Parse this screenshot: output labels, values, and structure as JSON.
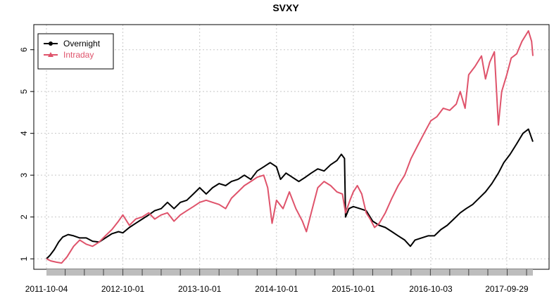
{
  "chart_data": {
    "type": "line",
    "title": "SVXY",
    "xlabel": "",
    "ylabel": "",
    "x_tick_labels": [
      "2011-10-04",
      "2012-10-01",
      "2013-10-01",
      "2014-10-01",
      "2015-10-01",
      "2016-10-03",
      "2017-09-29"
    ],
    "x_range": [
      "2011-10-04",
      "2018-01-31"
    ],
    "ylim": [
      0.75,
      6.6
    ],
    "y_ticks": [
      1,
      2,
      3,
      4,
      5,
      6
    ],
    "grid": true,
    "legend_position": "top-left",
    "series": [
      {
        "name": "Overnight",
        "color": "#000000",
        "marker": "circle",
        "points": [
          [
            "2011-10-04",
            1.0
          ],
          [
            "2011-10-20",
            1.08
          ],
          [
            "2011-11-10",
            1.22
          ],
          [
            "2011-12-01",
            1.4
          ],
          [
            "2011-12-20",
            1.52
          ],
          [
            "2012-01-15",
            1.58
          ],
          [
            "2012-02-10",
            1.55
          ],
          [
            "2012-03-10",
            1.5
          ],
          [
            "2012-04-10",
            1.5
          ],
          [
            "2012-05-10",
            1.42
          ],
          [
            "2012-06-10",
            1.4
          ],
          [
            "2012-07-10",
            1.5
          ],
          [
            "2012-08-10",
            1.6
          ],
          [
            "2012-09-10",
            1.65
          ],
          [
            "2012-10-01",
            1.62
          ],
          [
            "2012-11-01",
            1.75
          ],
          [
            "2012-12-01",
            1.85
          ],
          [
            "2013-01-01",
            1.95
          ],
          [
            "2013-02-01",
            2.05
          ],
          [
            "2013-03-01",
            2.15
          ],
          [
            "2013-04-01",
            2.2
          ],
          [
            "2013-05-01",
            2.35
          ],
          [
            "2013-06-01",
            2.2
          ],
          [
            "2013-07-01",
            2.35
          ],
          [
            "2013-08-01",
            2.4
          ],
          [
            "2013-09-01",
            2.55
          ],
          [
            "2013-10-01",
            2.7
          ],
          [
            "2013-11-01",
            2.55
          ],
          [
            "2013-12-01",
            2.7
          ],
          [
            "2014-01-01",
            2.8
          ],
          [
            "2014-02-01",
            2.75
          ],
          [
            "2014-03-01",
            2.85
          ],
          [
            "2014-04-01",
            2.9
          ],
          [
            "2014-05-01",
            3.0
          ],
          [
            "2014-06-01",
            2.9
          ],
          [
            "2014-07-01",
            3.1
          ],
          [
            "2014-08-01",
            3.2
          ],
          [
            "2014-09-01",
            3.3
          ],
          [
            "2014-10-01",
            3.2
          ],
          [
            "2014-10-20",
            2.9
          ],
          [
            "2014-11-15",
            3.05
          ],
          [
            "2014-12-15",
            2.95
          ],
          [
            "2015-01-15",
            2.85
          ],
          [
            "2015-02-15",
            2.95
          ],
          [
            "2015-03-15",
            3.05
          ],
          [
            "2015-04-15",
            3.15
          ],
          [
            "2015-05-15",
            3.1
          ],
          [
            "2015-06-15",
            3.25
          ],
          [
            "2015-07-15",
            3.35
          ],
          [
            "2015-08-05",
            3.5
          ],
          [
            "2015-08-20",
            3.4
          ],
          [
            "2015-08-25",
            2.0
          ],
          [
            "2015-09-10",
            2.2
          ],
          [
            "2015-10-01",
            2.25
          ],
          [
            "2015-11-01",
            2.2
          ],
          [
            "2015-12-01",
            2.15
          ],
          [
            "2016-01-01",
            1.9
          ],
          [
            "2016-02-01",
            1.8
          ],
          [
            "2016-03-01",
            1.75
          ],
          [
            "2016-04-01",
            1.65
          ],
          [
            "2016-05-01",
            1.55
          ],
          [
            "2016-06-01",
            1.45
          ],
          [
            "2016-06-28",
            1.3
          ],
          [
            "2016-07-20",
            1.45
          ],
          [
            "2016-08-20",
            1.5
          ],
          [
            "2016-09-20",
            1.55
          ],
          [
            "2016-10-20",
            1.55
          ],
          [
            "2016-11-20",
            1.7
          ],
          [
            "2016-12-20",
            1.8
          ],
          [
            "2017-01-20",
            1.95
          ],
          [
            "2017-02-20",
            2.1
          ],
          [
            "2017-03-20",
            2.2
          ],
          [
            "2017-04-20",
            2.3
          ],
          [
            "2017-05-20",
            2.45
          ],
          [
            "2017-06-20",
            2.6
          ],
          [
            "2017-07-20",
            2.8
          ],
          [
            "2017-08-20",
            3.05
          ],
          [
            "2017-09-15",
            3.3
          ],
          [
            "2017-10-15",
            3.5
          ],
          [
            "2017-11-15",
            3.75
          ],
          [
            "2017-12-15",
            4.0
          ],
          [
            "2018-01-10",
            4.1
          ],
          [
            "2018-01-31",
            3.8
          ]
        ]
      },
      {
        "name": "Intraday",
        "color": "#df536b",
        "marker": "triangle",
        "points": [
          [
            "2011-10-04",
            1.0
          ],
          [
            "2011-10-25",
            0.95
          ],
          [
            "2011-11-20",
            0.92
          ],
          [
            "2011-12-15",
            0.9
          ],
          [
            "2012-01-10",
            1.05
          ],
          [
            "2012-02-10",
            1.3
          ],
          [
            "2012-03-10",
            1.45
          ],
          [
            "2012-04-10",
            1.35
          ],
          [
            "2012-05-10",
            1.3
          ],
          [
            "2012-06-10",
            1.4
          ],
          [
            "2012-07-10",
            1.55
          ],
          [
            "2012-08-10",
            1.7
          ],
          [
            "2012-09-10",
            1.9
          ],
          [
            "2012-10-01",
            2.05
          ],
          [
            "2012-11-01",
            1.8
          ],
          [
            "2012-12-01",
            1.95
          ],
          [
            "2013-01-01",
            2.0
          ],
          [
            "2013-02-01",
            2.1
          ],
          [
            "2013-03-01",
            1.95
          ],
          [
            "2013-04-01",
            2.05
          ],
          [
            "2013-05-01",
            2.1
          ],
          [
            "2013-06-01",
            1.9
          ],
          [
            "2013-07-01",
            2.05
          ],
          [
            "2013-08-01",
            2.15
          ],
          [
            "2013-09-01",
            2.25
          ],
          [
            "2013-10-01",
            2.35
          ],
          [
            "2013-11-01",
            2.4
          ],
          [
            "2013-12-01",
            2.35
          ],
          [
            "2014-01-01",
            2.3
          ],
          [
            "2014-02-01",
            2.2
          ],
          [
            "2014-03-01",
            2.45
          ],
          [
            "2014-04-01",
            2.6
          ],
          [
            "2014-05-01",
            2.75
          ],
          [
            "2014-06-01",
            2.85
          ],
          [
            "2014-07-01",
            2.95
          ],
          [
            "2014-08-01",
            3.0
          ],
          [
            "2014-08-20",
            2.7
          ],
          [
            "2014-09-10",
            1.85
          ],
          [
            "2014-10-01",
            2.4
          ],
          [
            "2014-11-01",
            2.2
          ],
          [
            "2014-12-01",
            2.6
          ],
          [
            "2015-01-01",
            2.2
          ],
          [
            "2015-02-01",
            1.9
          ],
          [
            "2015-02-20",
            1.65
          ],
          [
            "2015-03-15",
            2.1
          ],
          [
            "2015-04-15",
            2.7
          ],
          [
            "2015-05-15",
            2.85
          ],
          [
            "2015-06-15",
            2.75
          ],
          [
            "2015-07-15",
            2.6
          ],
          [
            "2015-08-10",
            2.55
          ],
          [
            "2015-08-25",
            2.1
          ],
          [
            "2015-09-15",
            2.4
          ],
          [
            "2015-10-01",
            2.6
          ],
          [
            "2015-10-20",
            2.75
          ],
          [
            "2015-11-10",
            2.55
          ],
          [
            "2015-12-01",
            2.1
          ],
          [
            "2015-12-20",
            1.95
          ],
          [
            "2016-01-10",
            1.75
          ],
          [
            "2016-02-01",
            1.85
          ],
          [
            "2016-03-01",
            2.1
          ],
          [
            "2016-04-01",
            2.45
          ],
          [
            "2016-05-01",
            2.75
          ],
          [
            "2016-06-01",
            3.0
          ],
          [
            "2016-07-01",
            3.4
          ],
          [
            "2016-08-01",
            3.7
          ],
          [
            "2016-09-01",
            4.0
          ],
          [
            "2016-10-03",
            4.3
          ],
          [
            "2016-11-01",
            4.4
          ],
          [
            "2016-12-01",
            4.6
          ],
          [
            "2017-01-01",
            4.55
          ],
          [
            "2017-02-01",
            4.7
          ],
          [
            "2017-02-20",
            5.0
          ],
          [
            "2017-03-15",
            4.6
          ],
          [
            "2017-04-01",
            5.4
          ],
          [
            "2017-05-01",
            5.6
          ],
          [
            "2017-06-01",
            5.85
          ],
          [
            "2017-06-20",
            5.3
          ],
          [
            "2017-07-10",
            5.7
          ],
          [
            "2017-08-01",
            5.95
          ],
          [
            "2017-08-20",
            4.2
          ],
          [
            "2017-09-05",
            5.0
          ],
          [
            "2017-09-29",
            5.4
          ],
          [
            "2017-10-20",
            5.8
          ],
          [
            "2017-11-15",
            5.9
          ],
          [
            "2017-12-10",
            6.2
          ],
          [
            "2018-01-10",
            6.45
          ],
          [
            "2018-01-25",
            6.2
          ],
          [
            "2018-01-31",
            5.85
          ]
        ]
      }
    ]
  }
}
